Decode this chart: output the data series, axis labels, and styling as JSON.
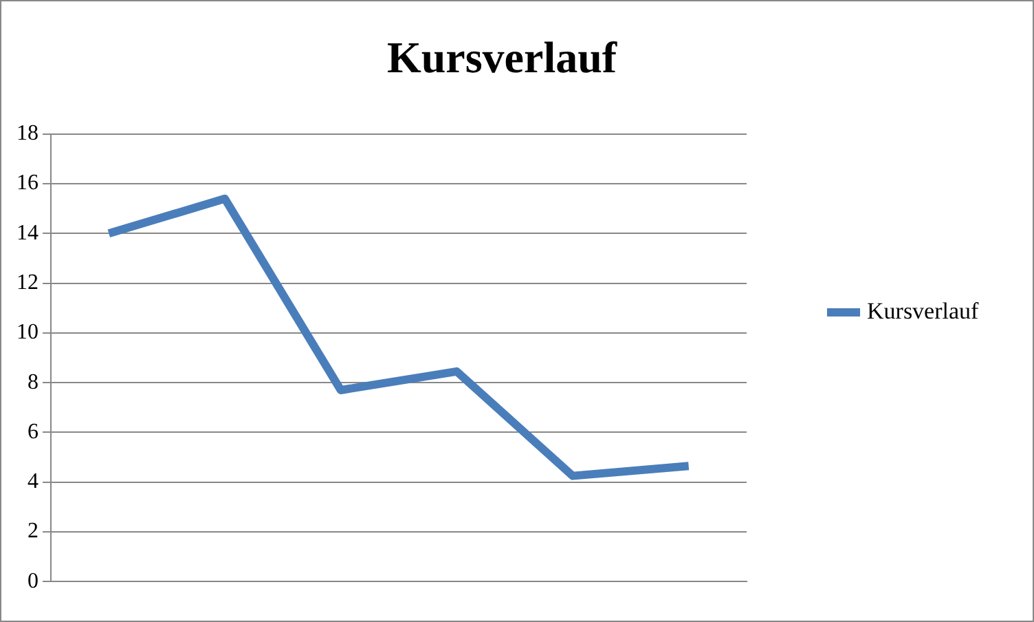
{
  "chart_data": {
    "type": "line",
    "title": "Kursverlauf",
    "categories": [
      null,
      null,
      null,
      null,
      null,
      null
    ],
    "series": [
      {
        "name": "Kursverlauf",
        "color": "#4a7ebb",
        "values": [
          14,
          15.4,
          7.7,
          8.45,
          4.25,
          4.65
        ]
      }
    ],
    "ylim": [
      0,
      18
    ],
    "yticks": [
      0,
      2,
      4,
      6,
      8,
      10,
      12,
      14,
      16,
      18
    ],
    "grid": "y",
    "legend": "right",
    "marker": "none",
    "line_style": "solid"
  }
}
